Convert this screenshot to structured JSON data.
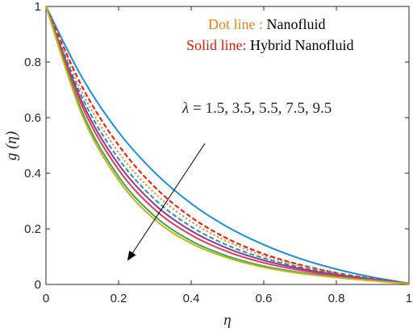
{
  "chart_data": {
    "type": "line",
    "xlabel": "η",
    "ylabel": "g (η)",
    "xlim": [
      0,
      1
    ],
    "ylim": [
      0,
      1
    ],
    "xticks": [
      "0",
      "0.2",
      "0.4",
      "0.6",
      "0.8",
      "1"
    ],
    "yticks": [
      "0",
      "0.2",
      "0.4",
      "0.6",
      "0.8",
      "1"
    ],
    "grid": false,
    "legend": {
      "placement": "top-right",
      "entries": [
        {
          "key": "Dot line",
          "sep": "   : ",
          "desc": "Nanofluid",
          "key_color": "#e8821e",
          "desc_color": "#000000"
        },
        {
          "key": "Solid line",
          "sep": ": ",
          "desc": "Hybrid Nanofluid",
          "key_color": "#e8150f",
          "desc_color": "#000000"
        }
      ]
    },
    "annotation": {
      "lambda_symbol": "λ",
      "text": " = 1.5, 3.5, 5.5, 7.5, 9.5"
    },
    "series": [
      {
        "color": "#1c8fd6",
        "style": "solid",
        "x": [
          0,
          0.1,
          0.2,
          0.3,
          0.4,
          0.5,
          0.6,
          0.7,
          0.8,
          0.9,
          1.0
        ],
        "y": [
          1,
          0.743,
          0.548,
          0.402,
          0.291,
          0.207,
          0.143,
          0.093,
          0.055,
          0.026,
          0.004
        ]
      },
      {
        "color": "#e8150f",
        "style": "dashed",
        "x": [
          0,
          0.1,
          0.2,
          0.3,
          0.4,
          0.5,
          0.6,
          0.7,
          0.8,
          0.9,
          1.0
        ],
        "y": [
          1,
          0.71,
          0.501,
          0.35,
          0.242,
          0.165,
          0.11,
          0.071,
          0.042,
          0.021,
          0.004
        ]
      },
      {
        "color": "#e8821e",
        "style": "dotted",
        "x": [
          0,
          0.1,
          0.2,
          0.3,
          0.4,
          0.5,
          0.6,
          0.7,
          0.8,
          0.9,
          1.0
        ],
        "y": [
          1,
          0.69,
          0.475,
          0.328,
          0.226,
          0.155,
          0.104,
          0.068,
          0.041,
          0.02,
          0.004
        ]
      },
      {
        "color": "#2e8fb4",
        "style": "dashed",
        "x": [
          0,
          0.1,
          0.2,
          0.3,
          0.4,
          0.5,
          0.6,
          0.7,
          0.8,
          0.9,
          1.0
        ],
        "y": [
          1,
          0.672,
          0.452,
          0.306,
          0.208,
          0.141,
          0.095,
          0.062,
          0.038,
          0.019,
          0.004
        ]
      },
      {
        "color": "#8e3a8e",
        "style": "solid",
        "x": [
          0,
          0.1,
          0.2,
          0.3,
          0.4,
          0.5,
          0.6,
          0.7,
          0.8,
          0.9,
          1.0
        ],
        "y": [
          1,
          0.655,
          0.432,
          0.287,
          0.193,
          0.13,
          0.087,
          0.057,
          0.035,
          0.018,
          0.004
        ]
      },
      {
        "color": "#e23a5a",
        "style": "solid",
        "x": [
          0,
          0.1,
          0.2,
          0.3,
          0.4,
          0.5,
          0.6,
          0.7,
          0.8,
          0.9,
          1.0
        ],
        "y": [
          1,
          0.64,
          0.413,
          0.269,
          0.178,
          0.118,
          0.078,
          0.051,
          0.031,
          0.016,
          0.004
        ]
      },
      {
        "color": "#3aa84a",
        "style": "solid",
        "x": [
          0,
          0.1,
          0.2,
          0.3,
          0.4,
          0.5,
          0.6,
          0.7,
          0.8,
          0.9,
          1.0
        ],
        "y": [
          1,
          0.62,
          0.388,
          0.245,
          0.157,
          0.102,
          0.066,
          0.043,
          0.027,
          0.014,
          0.003
        ]
      },
      {
        "color": "#c8b21e",
        "style": "solid",
        "x": [
          0,
          0.1,
          0.2,
          0.3,
          0.4,
          0.5,
          0.6,
          0.7,
          0.8,
          0.9,
          1.0
        ],
        "y": [
          1,
          0.608,
          0.375,
          0.233,
          0.148,
          0.096,
          0.062,
          0.04,
          0.025,
          0.013,
          0.003
        ]
      }
    ]
  }
}
